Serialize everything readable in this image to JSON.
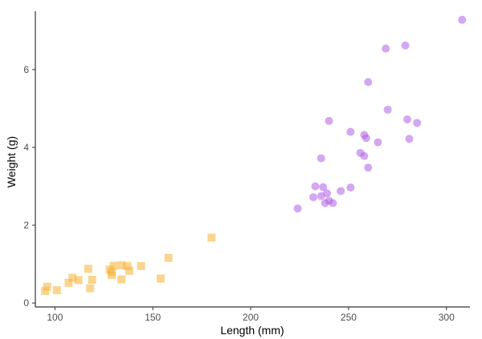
{
  "chart_data": {
    "type": "scatter",
    "title": "",
    "xlabel": "Length (mm)",
    "ylabel": "Weight (g)",
    "xlim": [
      90,
      312
    ],
    "ylim": [
      -0.1,
      7.5
    ],
    "xticks": [
      100,
      150,
      200,
      250,
      300
    ],
    "yticks": [
      0,
      2,
      4,
      6
    ],
    "xtick_labels": [
      "100",
      "150",
      "200",
      "250",
      "300"
    ],
    "ytick_labels": [
      "0",
      "2",
      "4",
      "6"
    ],
    "grid": false,
    "legend": "none",
    "series": [
      {
        "marker": "square",
        "color": "#f5b335",
        "x": [
          95,
          96,
          101,
          107,
          109,
          112,
          117,
          118,
          119,
          128,
          129,
          129,
          130,
          134,
          134,
          137,
          138,
          144,
          154,
          158,
          180
        ],
        "y": [
          0.31,
          0.42,
          0.33,
          0.52,
          0.65,
          0.59,
          0.88,
          0.38,
          0.6,
          0.86,
          0.72,
          0.8,
          0.96,
          0.61,
          0.97,
          0.95,
          0.83,
          0.95,
          0.63,
          1.16,
          1.68
        ]
      },
      {
        "marker": "circle",
        "color": "#b15ee6",
        "x": [
          224,
          232,
          233,
          236,
          236,
          237,
          238,
          239,
          240,
          240,
          242,
          246,
          251,
          251,
          256,
          258,
          258,
          259,
          260,
          260,
          265,
          269,
          270,
          279,
          280,
          281,
          285,
          308
        ],
        "y": [
          2.43,
          2.72,
          3.0,
          2.75,
          3.72,
          2.98,
          2.57,
          2.82,
          4.68,
          2.63,
          2.57,
          2.88,
          4.4,
          2.97,
          3.86,
          3.78,
          4.32,
          4.24,
          5.68,
          3.48,
          4.13,
          6.54,
          4.97,
          6.62,
          4.72,
          4.22,
          4.63,
          7.28
        ]
      }
    ]
  }
}
